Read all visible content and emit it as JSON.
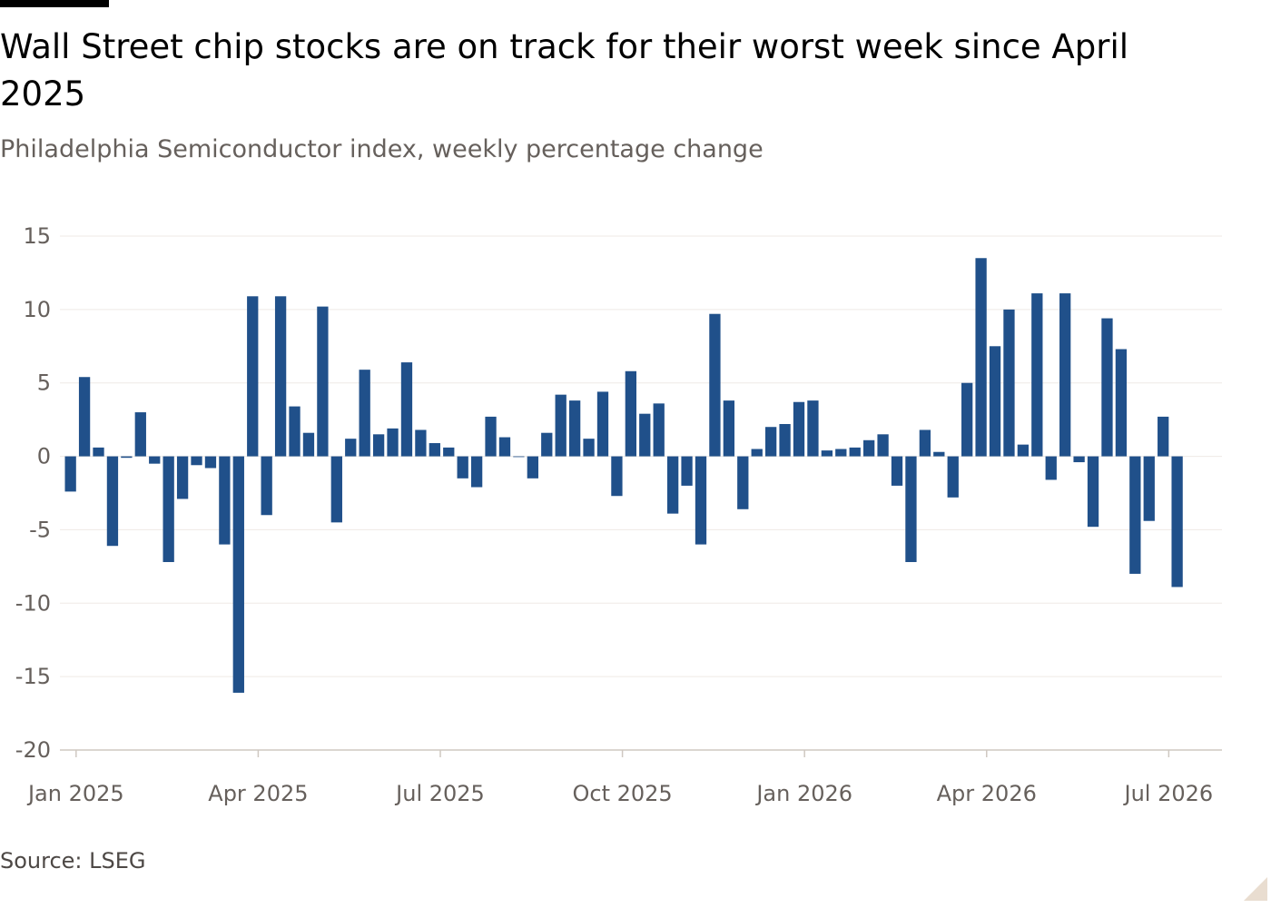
{
  "title": "Wall Street chip stocks are on track for their worst week since April 2025",
  "subtitle": "Philadelphia Semiconductor index, weekly percentage change",
  "source": "Source: LSEG",
  "colors": {
    "bar": "#20508a",
    "grid": "#efeae5",
    "axis": "#cfc8c1",
    "text": "#66605c"
  },
  "chart_data": {
    "type": "bar",
    "y_ticks": [
      "15",
      "10",
      "5",
      "0",
      "-5",
      "-10",
      "-15",
      "-20"
    ],
    "y_tick_values": [
      15,
      10,
      5,
      0,
      -5,
      -10,
      -15,
      -20
    ],
    "ylim": [
      -20,
      15
    ],
    "x_ticks": [
      {
        "label": "Jan 2025",
        "index": 0.4
      },
      {
        "label": "Apr 2025",
        "index": 13.4
      },
      {
        "label": "Jul 2025",
        "index": 26.4
      },
      {
        "label": "Oct 2025",
        "index": 39.4
      },
      {
        "label": "Jan 2026",
        "index": 52.4
      },
      {
        "label": "Apr 2026",
        "index": 65.4
      },
      {
        "label": "Jul 2026",
        "index": 78.4
      }
    ],
    "grid": true,
    "series": [
      {
        "values": [
          -2.4,
          5.4,
          0.6,
          -6.1,
          -0.1,
          3.0,
          -0.5,
          -7.2,
          -2.9,
          -0.6,
          -0.8,
          -6.0,
          -16.1,
          10.9,
          -4.0,
          10.9,
          3.4,
          1.6,
          10.2,
          -4.5,
          1.2,
          5.9,
          1.5,
          1.9,
          6.4,
          1.8,
          0.9,
          0.6,
          -1.5,
          -2.1,
          2.7,
          1.3,
          -0.05,
          -1.5,
          1.6,
          4.2,
          3.8,
          1.2,
          4.4,
          -2.7,
          5.8,
          2.9,
          3.6,
          -3.9,
          -2.0,
          -6.0,
          9.7,
          3.8,
          -3.6,
          0.5,
          2.0,
          2.2,
          3.7,
          3.8,
          0.4,
          0.5,
          0.6,
          1.1,
          1.5,
          -2.0,
          -7.2,
          1.8,
          0.3,
          -2.8,
          5.0,
          13.5,
          7.5,
          10.0,
          0.8,
          11.1,
          -1.6,
          11.1,
          -0.4,
          -4.8,
          9.4,
          7.3,
          -8.0,
          -4.4,
          2.7,
          -8.9
        ]
      }
    ]
  }
}
